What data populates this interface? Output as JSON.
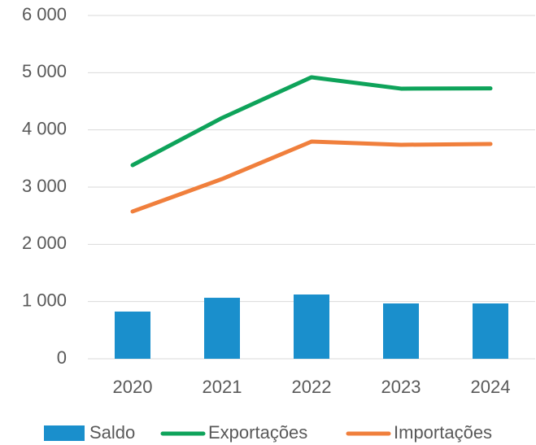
{
  "chart_data": {
    "type": "combo",
    "categories": [
      "2020",
      "2021",
      "2022",
      "2023",
      "2024"
    ],
    "series": [
      {
        "name": "Saldo",
        "type": "bar",
        "color": "#1a8fcc",
        "values": [
          825,
          1066,
          1123,
          967,
          967
        ]
      },
      {
        "name": "Exportações",
        "type": "line",
        "color": "#0ea35a",
        "values": [
          3384,
          4209,
          4920,
          4721,
          4725
        ]
      },
      {
        "name": "Importações",
        "type": "line",
        "color": "#f07f3c",
        "values": [
          2574,
          3142,
          3796,
          3740,
          3754
        ]
      }
    ],
    "ylim": [
      0,
      6000
    ],
    "yticks": [
      0,
      {
        "value": 1000,
        "label": "1 000"
      },
      {
        "value": 2000,
        "label": "2 000"
      },
      {
        "value": 3000,
        "label": "3 000"
      },
      {
        "value": 4000,
        "label": "4 000"
      },
      {
        "value": 5000,
        "label": "5 000"
      },
      {
        "value": 6000,
        "label": "6 000"
      }
    ],
    "grid": true,
    "legend": "bottom"
  }
}
